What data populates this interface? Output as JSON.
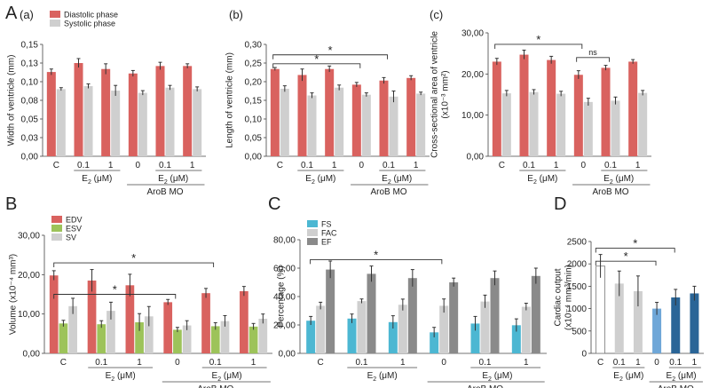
{
  "figure": {
    "panel_letters": [
      "A",
      "B",
      "C",
      "D"
    ],
    "sub_letters": [
      "(a)",
      "(b)",
      "(c)"
    ],
    "e2_label": "E",
    "e2_sub": "2",
    "e2_unit": " (μM)",
    "arob_label": "AroB MO",
    "sig_star": "*",
    "ns_label": "ns"
  },
  "colors": {
    "diastolic": "#d9625f",
    "systolic": "#cfcfcf",
    "edv": "#d9625f",
    "esv": "#9dc35a",
    "sv": "#cfcfcf",
    "fs": "#4cb7d2",
    "fac": "#cfcfcf",
    "ef": "#8a8a8a",
    "d_c": "#ffffff",
    "d_e2": "#cfcfcf",
    "d_arob0": "#6fa7d8",
    "d_arob": "#2a6597"
  },
  "chart_data": [
    {
      "type": "bar",
      "panel": "A(a)",
      "ylabel": "Width of ventricle (mm)",
      "ylim": [
        0,
        0.15
      ],
      "yticks": [
        "0,00",
        "0,03",
        "0,05",
        "0,08",
        "0,10",
        "0,13",
        "0,15"
      ],
      "categories": [
        "C",
        "0.1",
        "1",
        "0",
        "0.1",
        "1"
      ],
      "legend_position": "top-left",
      "series": [
        {
          "name": "Diastolic phase",
          "color_key": "diastolic",
          "values": [
            0.113,
            0.125,
            0.117,
            0.111,
            0.121,
            0.121
          ],
          "errors": [
            0.004,
            0.006,
            0.007,
            0.004,
            0.005,
            0.003
          ]
        },
        {
          "name": "Systolic phase",
          "color_key": "systolic",
          "values": [
            0.09,
            0.094,
            0.088,
            0.085,
            0.092,
            0.09
          ],
          "errors": [
            0.002,
            0.003,
            0.007,
            0.003,
            0.003,
            0.003
          ]
        }
      ],
      "significance": []
    },
    {
      "type": "bar",
      "panel": "A(b)",
      "ylabel": "Length of ventricle (mm)",
      "ylim": [
        0,
        0.3
      ],
      "yticks": [
        "0,00",
        "0,05",
        "0,10",
        "0,15",
        "0,20",
        "0,25",
        "0,30"
      ],
      "categories": [
        "C",
        "0.1",
        "1",
        "0",
        "0.1",
        "1"
      ],
      "series": [
        {
          "name": "Diastolic phase",
          "color_key": "diastolic",
          "values": [
            0.234,
            0.218,
            0.234,
            0.192,
            0.203,
            0.21
          ],
          "errors": [
            0.004,
            0.016,
            0.008,
            0.006,
            0.008,
            0.006
          ]
        },
        {
          "name": "Systolic phase",
          "color_key": "systolic",
          "values": [
            0.181,
            0.163,
            0.184,
            0.165,
            0.16,
            0.168
          ],
          "errors": [
            0.008,
            0.007,
            0.007,
            0.005,
            0.015,
            0.004
          ]
        }
      ],
      "significance": [
        {
          "from": 0,
          "to": 4,
          "level": 0.272,
          "label": "*"
        },
        {
          "from": 0,
          "to": 3,
          "level": 0.248,
          "label": "*"
        }
      ]
    },
    {
      "type": "bar",
      "panel": "A(c)",
      "ylabel": "Cross-sectional area of ventricle (x10⁻³ mm²)",
      "ylim": [
        0,
        30
      ],
      "yticks": [
        "0,00",
        "10,00",
        "20,00",
        "30,00"
      ],
      "categories": [
        "C",
        "0.1",
        "1",
        "0",
        "0.1",
        "1"
      ],
      "series": [
        {
          "name": "Diastolic phase",
          "color_key": "diastolic",
          "values": [
            23.0,
            24.7,
            23.4,
            19.8,
            21.5,
            23.0
          ],
          "errors": [
            0.8,
            1.1,
            0.9,
            1.0,
            0.6,
            0.5
          ]
        },
        {
          "name": "Systolic phase",
          "color_key": "systolic",
          "values": [
            15.3,
            15.6,
            15.2,
            13.2,
            13.5,
            15.4
          ],
          "errors": [
            0.7,
            0.6,
            0.6,
            0.9,
            0.9,
            0.6
          ]
        }
      ],
      "significance": [
        {
          "from": 0,
          "to": 3,
          "level": 27.2,
          "label": "*"
        },
        {
          "from": 3,
          "to": 4,
          "level": 24.0,
          "label": "ns"
        }
      ]
    },
    {
      "type": "bar",
      "panel": "B",
      "ylabel": "Volume (x10⁻⁴ mm³)",
      "ylim": [
        0,
        30
      ],
      "yticks": [
        "0,00",
        "10,00",
        "20,00",
        "30,00"
      ],
      "categories": [
        "C",
        "0.1",
        "1",
        "0",
        "0.1",
        "1"
      ],
      "legend_position": "top-left",
      "series": [
        {
          "name": "EDV",
          "color_key": "edv",
          "values": [
            19.8,
            18.5,
            17.3,
            13.0,
            15.3,
            15.8
          ],
          "errors": [
            1.2,
            2.8,
            2.8,
            0.7,
            1.2,
            1.2
          ]
        },
        {
          "name": "ESV",
          "color_key": "esv",
          "values": [
            7.6,
            7.4,
            7.9,
            6.0,
            6.9,
            6.8
          ],
          "errors": [
            0.8,
            0.9,
            2.2,
            0.6,
            0.9,
            0.8
          ]
        },
        {
          "name": "SV",
          "color_key": "sv",
          "values": [
            12.0,
            10.8,
            9.4,
            7.1,
            8.2,
            8.8
          ],
          "errors": [
            2.0,
            2.2,
            2.5,
            1.2,
            1.4,
            1.2
          ]
        }
      ],
      "significance": [
        {
          "from": 0,
          "to": 4,
          "level": 23.0,
          "label": "*"
        },
        {
          "from": 0,
          "to": 3,
          "level": 15.0,
          "label": "*"
        }
      ]
    },
    {
      "type": "bar",
      "panel": "C",
      "ylabel": "Percentage (%)",
      "ylim": [
        0,
        80
      ],
      "yticks": [
        "0,00",
        "20,00",
        "40,00",
        "60,00",
        "80,00"
      ],
      "categories": [
        "C",
        "0.1",
        "1",
        "0",
        "0.1",
        "1"
      ],
      "legend_position": "top-left",
      "series": [
        {
          "name": "FS",
          "color_key": "fs",
          "values": [
            23.0,
            24.5,
            22.0,
            14.8,
            21.0,
            19.8
          ],
          "errors": [
            3.0,
            3.2,
            4.5,
            3.5,
            5.0,
            4.5
          ]
        },
        {
          "name": "FAC",
          "color_key": "fac",
          "values": [
            33.5,
            36.8,
            34.2,
            33.5,
            36.5,
            32.8
          ],
          "errors": [
            2.5,
            1.5,
            4.0,
            4.8,
            4.5,
            2.5
          ]
        },
        {
          "name": "EF",
          "color_key": "ef",
          "values": [
            59.0,
            56.0,
            53.0,
            50.0,
            53.0,
            54.5
          ],
          "errors": [
            6.0,
            5.5,
            6.0,
            3.0,
            5.0,
            5.5
          ]
        }
      ],
      "significance": [
        {
          "from": 0,
          "to": 3,
          "level": 66.0,
          "label": "*"
        }
      ]
    },
    {
      "type": "bar",
      "panel": "D",
      "ylabel": "Cardiac output (x10⁻⁴ mm³/min)",
      "ylim": [
        0,
        2500
      ],
      "yticks": [
        "0",
        "500",
        "1000",
        "1500",
        "2000",
        "2500"
      ],
      "categories": [
        "C",
        "0.1",
        "1",
        "0",
        "0.1",
        "1"
      ],
      "series": [
        {
          "name": "",
          "color_keys": [
            "d_c",
            "d_e2",
            "d_e2",
            "d_arob0",
            "d_arob",
            "d_arob"
          ],
          "values": [
            1950,
            1560,
            1390,
            1000,
            1250,
            1340
          ],
          "errors": [
            260,
            280,
            340,
            140,
            180,
            160
          ]
        }
      ],
      "significance": [
        {
          "from": 0,
          "to": 4,
          "level": 2350,
          "label": "*"
        },
        {
          "from": 0,
          "to": 3,
          "level": 2060,
          "label": "*"
        }
      ]
    }
  ]
}
